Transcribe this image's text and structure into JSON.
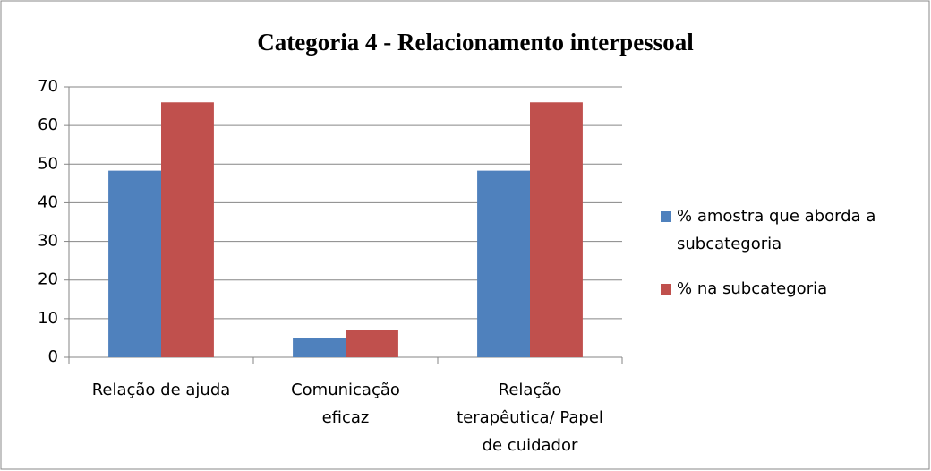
{
  "chart_data": {
    "type": "bar",
    "title": "Categoria 4 - Relacionamento interpessoal",
    "categories": [
      "Relação de ajuda",
      "Comunicação eficaz",
      "Relação terapêutica/ Papel de cuidador"
    ],
    "series": [
      {
        "name": "% amostra que aborda a subcategoria",
        "color": "#4f81bd",
        "values": [
          48.3,
          5,
          48.3
        ]
      },
      {
        "name": "% na subcategoria",
        "color": "#c0504d",
        "values": [
          66,
          7,
          66
        ]
      }
    ],
    "ylim": [
      0,
      70
    ],
    "yticks": [
      0,
      10,
      20,
      30,
      40,
      50,
      60,
      70
    ],
    "grid": true,
    "legend": "right"
  }
}
